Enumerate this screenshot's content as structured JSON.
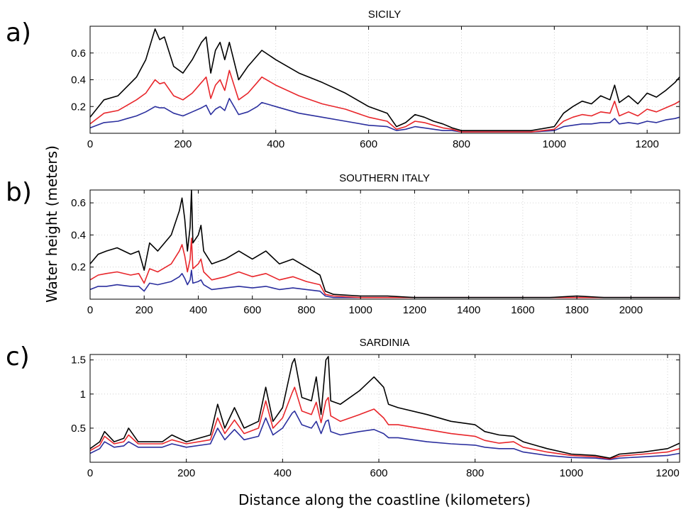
{
  "figure": {
    "ylabel": "Water height (meters)",
    "xlabel": "Distance along the coastline (kilometers)"
  },
  "colors": {
    "black_series": "#000000",
    "red_series": "#e8262b",
    "blue_series": "#2b2f9e",
    "grid": "#c8c8c8"
  },
  "chart_data": [
    {
      "id": "sicily",
      "tag": "a)",
      "title": "SICILY",
      "type": "line",
      "xlim": [
        0,
        1270
      ],
      "ylim": [
        0,
        0.8
      ],
      "xticks": [
        0,
        200,
        400,
        600,
        800,
        1000,
        1200
      ],
      "yticks": [
        0.2,
        0.4,
        0.6
      ],
      "ytick_labels": [
        "0.2",
        "0.4",
        "0.6"
      ],
      "grid": true,
      "series": [
        {
          "color": "black",
          "x": [
            0,
            30,
            60,
            80,
            100,
            120,
            140,
            150,
            160,
            180,
            200,
            220,
            240,
            250,
            260,
            270,
            280,
            290,
            300,
            320,
            340,
            360,
            370,
            400,
            450,
            500,
            550,
            600,
            640,
            660,
            680,
            700,
            720,
            740,
            760,
            780,
            800,
            850,
            900,
            950,
            1000,
            1020,
            1040,
            1060,
            1080,
            1100,
            1120,
            1130,
            1140,
            1160,
            1180,
            1200,
            1220,
            1240,
            1260,
            1270
          ],
          "y": [
            0.12,
            0.25,
            0.28,
            0.35,
            0.42,
            0.55,
            0.78,
            0.7,
            0.72,
            0.5,
            0.45,
            0.55,
            0.68,
            0.72,
            0.45,
            0.62,
            0.68,
            0.55,
            0.68,
            0.4,
            0.5,
            0.58,
            0.62,
            0.55,
            0.45,
            0.38,
            0.3,
            0.2,
            0.15,
            0.05,
            0.08,
            0.14,
            0.12,
            0.09,
            0.07,
            0.04,
            0.02,
            0.02,
            0.02,
            0.02,
            0.05,
            0.15,
            0.2,
            0.24,
            0.22,
            0.28,
            0.25,
            0.36,
            0.23,
            0.28,
            0.22,
            0.3,
            0.27,
            0.32,
            0.38,
            0.42
          ]
        },
        {
          "color": "red",
          "x": [
            0,
            30,
            60,
            80,
            100,
            120,
            140,
            150,
            160,
            180,
            200,
            220,
            240,
            250,
            260,
            270,
            280,
            290,
            300,
            320,
            340,
            360,
            370,
            400,
            450,
            500,
            550,
            600,
            640,
            660,
            680,
            700,
            720,
            740,
            760,
            780,
            800,
            850,
            900,
            950,
            1000,
            1020,
            1040,
            1060,
            1080,
            1100,
            1120,
            1130,
            1140,
            1160,
            1180,
            1200,
            1220,
            1240,
            1260,
            1270
          ],
          "y": [
            0.07,
            0.15,
            0.17,
            0.21,
            0.25,
            0.3,
            0.4,
            0.37,
            0.38,
            0.28,
            0.25,
            0.3,
            0.38,
            0.42,
            0.26,
            0.36,
            0.4,
            0.32,
            0.47,
            0.25,
            0.3,
            0.38,
            0.42,
            0.36,
            0.28,
            0.22,
            0.18,
            0.12,
            0.09,
            0.03,
            0.05,
            0.09,
            0.08,
            0.06,
            0.04,
            0.03,
            0.01,
            0.01,
            0.01,
            0.01,
            0.03,
            0.09,
            0.12,
            0.14,
            0.13,
            0.16,
            0.15,
            0.24,
            0.13,
            0.16,
            0.13,
            0.18,
            0.16,
            0.19,
            0.22,
            0.24
          ]
        },
        {
          "color": "blue",
          "x": [
            0,
            30,
            60,
            80,
            100,
            120,
            140,
            150,
            160,
            180,
            200,
            220,
            240,
            250,
            260,
            270,
            280,
            290,
            300,
            320,
            340,
            360,
            370,
            400,
            450,
            500,
            550,
            600,
            640,
            660,
            680,
            700,
            720,
            740,
            760,
            780,
            800,
            850,
            900,
            950,
            1000,
            1020,
            1040,
            1060,
            1080,
            1100,
            1120,
            1130,
            1140,
            1160,
            1180,
            1200,
            1220,
            1240,
            1260,
            1270
          ],
          "y": [
            0.04,
            0.08,
            0.09,
            0.11,
            0.13,
            0.16,
            0.2,
            0.19,
            0.19,
            0.15,
            0.13,
            0.16,
            0.19,
            0.21,
            0.14,
            0.18,
            0.2,
            0.17,
            0.26,
            0.14,
            0.16,
            0.2,
            0.23,
            0.2,
            0.15,
            0.12,
            0.09,
            0.06,
            0.05,
            0.02,
            0.03,
            0.05,
            0.04,
            0.03,
            0.02,
            0.02,
            0.01,
            0.01,
            0.01,
            0.01,
            0.02,
            0.05,
            0.06,
            0.07,
            0.07,
            0.08,
            0.08,
            0.11,
            0.07,
            0.08,
            0.07,
            0.09,
            0.08,
            0.1,
            0.11,
            0.12
          ]
        }
      ]
    },
    {
      "id": "southern-italy",
      "tag": "b)",
      "title": "SOUTHERN ITALY",
      "type": "line",
      "xlim": [
        0,
        2180
      ],
      "ylim": [
        0,
        0.68
      ],
      "xticks": [
        0,
        200,
        400,
        600,
        800,
        1000,
        1200,
        1400,
        1600,
        1800,
        2000
      ],
      "yticks": [
        0.2,
        0.4,
        0.6
      ],
      "ytick_labels": [
        "0.2",
        "0.4",
        "0.6"
      ],
      "grid": true,
      "series": [
        {
          "color": "black",
          "x": [
            0,
            30,
            60,
            100,
            150,
            180,
            200,
            220,
            250,
            300,
            330,
            340,
            350,
            360,
            370,
            375,
            380,
            400,
            410,
            420,
            450,
            500,
            550,
            600,
            650,
            700,
            750,
            800,
            850,
            870,
            900,
            1000,
            1100,
            1200,
            1300,
            1400,
            1500,
            1600,
            1700,
            1800,
            1900,
            2000,
            2100,
            2180
          ],
          "y": [
            0.22,
            0.28,
            0.3,
            0.32,
            0.28,
            0.3,
            0.18,
            0.35,
            0.3,
            0.4,
            0.55,
            0.63,
            0.5,
            0.3,
            0.45,
            0.68,
            0.35,
            0.4,
            0.46,
            0.3,
            0.22,
            0.25,
            0.3,
            0.25,
            0.3,
            0.22,
            0.25,
            0.2,
            0.15,
            0.05,
            0.03,
            0.02,
            0.02,
            0.01,
            0.01,
            0.01,
            0.01,
            0.01,
            0.01,
            0.02,
            0.01,
            0.01,
            0.01,
            0.01
          ]
        },
        {
          "color": "red",
          "x": [
            0,
            30,
            60,
            100,
            150,
            180,
            200,
            220,
            250,
            300,
            330,
            340,
            350,
            360,
            370,
            375,
            380,
            400,
            410,
            420,
            450,
            500,
            550,
            600,
            650,
            700,
            750,
            800,
            850,
            870,
            900,
            1000,
            1100,
            1200,
            1300,
            1400,
            1500,
            1600,
            1700,
            1800,
            1900,
            2000,
            2100,
            2180
          ],
          "y": [
            0.12,
            0.15,
            0.16,
            0.17,
            0.15,
            0.16,
            0.1,
            0.19,
            0.17,
            0.22,
            0.3,
            0.34,
            0.27,
            0.17,
            0.25,
            0.38,
            0.19,
            0.22,
            0.25,
            0.17,
            0.12,
            0.14,
            0.17,
            0.14,
            0.16,
            0.12,
            0.14,
            0.11,
            0.09,
            0.03,
            0.02,
            0.01,
            0.01,
            0.01,
            0.01,
            0.01,
            0.01,
            0.01,
            0.01,
            0.01,
            0.01,
            0.01,
            0.01,
            0.01
          ]
        },
        {
          "color": "blue",
          "x": [
            0,
            30,
            60,
            100,
            150,
            180,
            200,
            220,
            250,
            300,
            330,
            340,
            350,
            360,
            370,
            375,
            380,
            400,
            410,
            420,
            450,
            500,
            550,
            600,
            650,
            700,
            750,
            800,
            850,
            870,
            900,
            1000,
            1100,
            1200,
            1300,
            1400,
            1500,
            1600,
            1700,
            1800,
            1900,
            2000,
            2100,
            2180
          ],
          "y": [
            0.06,
            0.08,
            0.08,
            0.09,
            0.08,
            0.08,
            0.05,
            0.1,
            0.09,
            0.11,
            0.14,
            0.16,
            0.13,
            0.09,
            0.12,
            0.18,
            0.1,
            0.11,
            0.12,
            0.09,
            0.06,
            0.07,
            0.08,
            0.07,
            0.08,
            0.06,
            0.07,
            0.06,
            0.05,
            0.02,
            0.01,
            0.01,
            0.01,
            0.01,
            0.01,
            0.01,
            0.01,
            0.01,
            0.01,
            0.01,
            0.01,
            0.01,
            0.01,
            0.01
          ]
        }
      ]
    },
    {
      "id": "sardinia",
      "tag": "c)",
      "title": "SARDINIA",
      "type": "line",
      "xlim": [
        0,
        1225
      ],
      "ylim": [
        0,
        1.58
      ],
      "xticks": [
        0,
        200,
        400,
        600,
        800,
        1000,
        1200
      ],
      "yticks": [
        0.5,
        1,
        1.5
      ],
      "ytick_labels": [
        "0.5",
        "1",
        "1.5"
      ],
      "grid": true,
      "series": [
        {
          "color": "black",
          "x": [
            0,
            20,
            30,
            50,
            70,
            80,
            100,
            150,
            170,
            200,
            250,
            265,
            280,
            300,
            320,
            350,
            365,
            380,
            400,
            420,
            425,
            440,
            460,
            470,
            480,
            490,
            495,
            500,
            520,
            560,
            590,
            610,
            620,
            640,
            700,
            750,
            800,
            820,
            850,
            880,
            900,
            950,
            1000,
            1050,
            1080,
            1100,
            1150,
            1200,
            1225
          ],
          "y": [
            0.2,
            0.3,
            0.45,
            0.3,
            0.35,
            0.5,
            0.3,
            0.3,
            0.4,
            0.3,
            0.4,
            0.85,
            0.5,
            0.8,
            0.5,
            0.6,
            1.1,
            0.6,
            0.8,
            1.45,
            1.52,
            0.95,
            0.9,
            1.25,
            0.7,
            1.5,
            1.55,
            0.9,
            0.85,
            1.05,
            1.25,
            1.1,
            0.85,
            0.8,
            0.7,
            0.6,
            0.55,
            0.45,
            0.4,
            0.38,
            0.3,
            0.2,
            0.12,
            0.1,
            0.06,
            0.12,
            0.15,
            0.2,
            0.28
          ]
        },
        {
          "color": "red",
          "x": [
            0,
            20,
            30,
            50,
            70,
            80,
            100,
            150,
            170,
            200,
            250,
            265,
            280,
            300,
            320,
            350,
            365,
            380,
            400,
            420,
            425,
            440,
            460,
            470,
            480,
            490,
            495,
            500,
            520,
            560,
            590,
            610,
            620,
            640,
            700,
            750,
            800,
            820,
            850,
            880,
            900,
            950,
            1000,
            1050,
            1080,
            1100,
            1150,
            1200,
            1225
          ],
          "y": [
            0.17,
            0.25,
            0.38,
            0.27,
            0.3,
            0.4,
            0.27,
            0.27,
            0.33,
            0.27,
            0.33,
            0.65,
            0.42,
            0.62,
            0.42,
            0.5,
            0.9,
            0.5,
            0.65,
            1.02,
            1.1,
            0.75,
            0.7,
            0.88,
            0.58,
            0.9,
            0.95,
            0.68,
            0.6,
            0.7,
            0.78,
            0.65,
            0.55,
            0.55,
            0.48,
            0.42,
            0.38,
            0.32,
            0.28,
            0.3,
            0.22,
            0.15,
            0.1,
            0.08,
            0.05,
            0.09,
            0.12,
            0.15,
            0.2
          ]
        },
        {
          "color": "blue",
          "x": [
            0,
            20,
            30,
            50,
            70,
            80,
            100,
            150,
            170,
            200,
            250,
            265,
            280,
            300,
            320,
            350,
            365,
            380,
            400,
            420,
            425,
            440,
            460,
            470,
            480,
            490,
            495,
            500,
            520,
            560,
            590,
            610,
            620,
            640,
            700,
            750,
            800,
            820,
            850,
            880,
            900,
            950,
            1000,
            1050,
            1080,
            1100,
            1150,
            1200,
            1225
          ],
          "y": [
            0.13,
            0.2,
            0.3,
            0.22,
            0.24,
            0.3,
            0.22,
            0.22,
            0.27,
            0.22,
            0.27,
            0.5,
            0.33,
            0.48,
            0.33,
            0.38,
            0.65,
            0.4,
            0.5,
            0.72,
            0.75,
            0.55,
            0.5,
            0.6,
            0.42,
            0.6,
            0.62,
            0.45,
            0.4,
            0.45,
            0.48,
            0.42,
            0.36,
            0.36,
            0.3,
            0.27,
            0.25,
            0.22,
            0.2,
            0.2,
            0.15,
            0.1,
            0.07,
            0.06,
            0.04,
            0.06,
            0.08,
            0.1,
            0.13
          ]
        }
      ]
    }
  ]
}
